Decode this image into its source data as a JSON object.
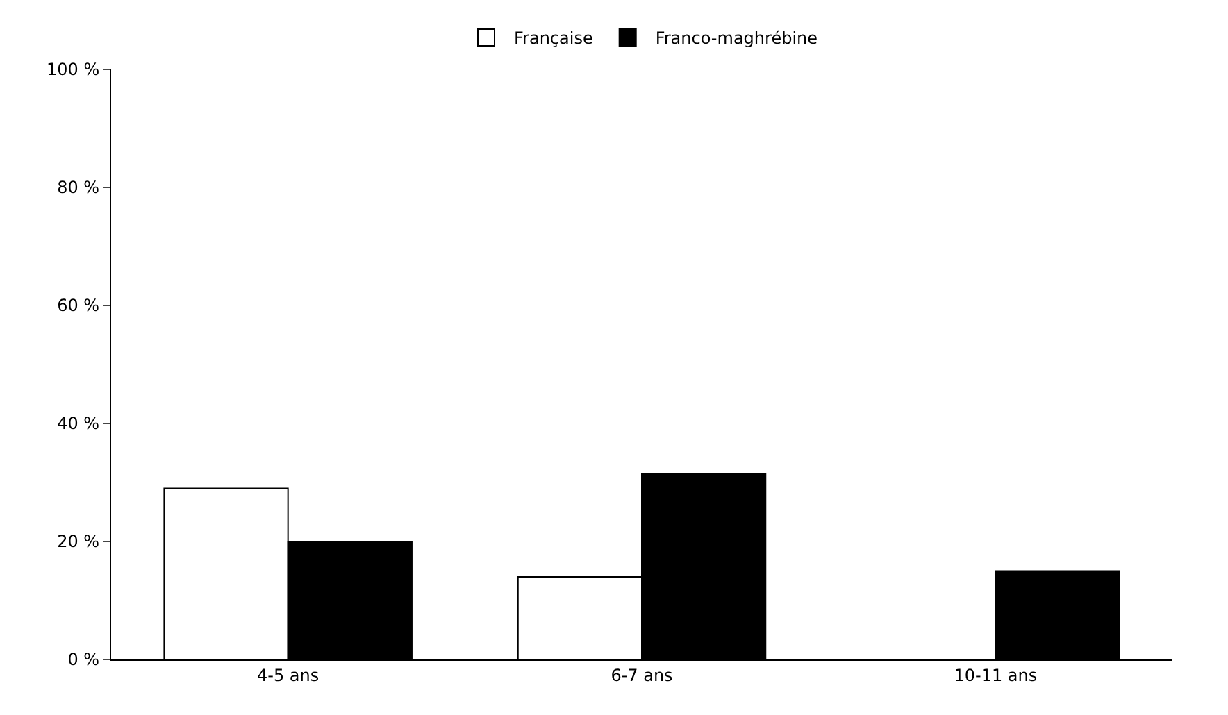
{
  "chart_data": {
    "type": "bar",
    "categories": [
      "4-5 ans",
      "6-7 ans",
      "10-11 ans"
    ],
    "series": [
      {
        "name": "Française",
        "color": "#ffffff",
        "values": [
          29,
          14,
          0
        ]
      },
      {
        "name": "Franco-maghrébine",
        "color": "#000000",
        "values": [
          20,
          31.5,
          15
        ]
      }
    ],
    "ylim": [
      0,
      100
    ],
    "yticks": [
      {
        "value": 0,
        "label": "0 %"
      },
      {
        "value": 20,
        "label": "20 %"
      },
      {
        "value": 40,
        "label": "40 %"
      },
      {
        "value": 60,
        "label": "60 %"
      },
      {
        "value": 80,
        "label": "80 %"
      },
      {
        "value": 100,
        "label": "100 %"
      }
    ],
    "grid": false,
    "legend": "top"
  }
}
